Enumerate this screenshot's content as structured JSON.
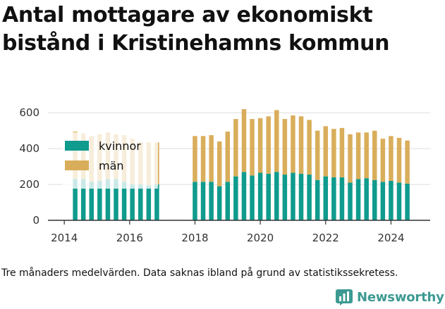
{
  "title": "Antal mottagare av ekonomiskt bistånd i Kristinehamns kommun",
  "footnote": "Tre månaders medelvärden. Data saknas ibland på grund av statistikssekretess.",
  "brand": {
    "name": "Newsworthy",
    "icon": "newsworthy-logo-icon"
  },
  "colors": {
    "kvinnor": "#0f9b8e",
    "man": "#d9ae5b",
    "axis": "#333333",
    "grid": "#dddddd"
  },
  "chart_data": {
    "type": "bar",
    "stacked": true,
    "x_ticks": [
      "2014",
      "2016",
      "2018",
      "2020",
      "2022",
      "2024"
    ],
    "y_ticks": [
      "0",
      "200",
      "400",
      "600"
    ],
    "ylim": [
      0,
      640
    ],
    "xlim": [
      2013.5,
      2025.2
    ],
    "grid": "horizontal",
    "legend_position": "top-left",
    "series": [
      {
        "name": "kvinnor",
        "color": "#0f9b8e",
        "values": [
          230,
          230,
          215,
          220,
          230,
          230,
          215,
          200,
          200,
          195,
          200,
          215,
          215,
          215,
          190,
          215,
          245,
          270,
          250,
          265,
          260,
          270,
          255,
          265,
          260,
          255,
          225,
          245,
          240,
          240,
          210,
          230,
          235,
          225,
          215,
          220,
          210,
          205
        ]
      },
      {
        "name": "män",
        "color": "#d9ae5b",
        "values": [
          265,
          255,
          255,
          260,
          260,
          250,
          260,
          255,
          235,
          240,
          235,
          255,
          255,
          260,
          250,
          280,
          320,
          350,
          315,
          305,
          320,
          345,
          310,
          320,
          320,
          305,
          275,
          280,
          270,
          275,
          270,
          260,
          255,
          275,
          240,
          250,
          250,
          240
        ]
      }
    ],
    "x": [
      "2014-05",
      "2014-08",
      "2014-11",
      "2015-02",
      "2015-05",
      "2015-08",
      "2015-11",
      "2016-02",
      "2016-05",
      "2016-08",
      "2016-11",
      "2018-01",
      "2018-04",
      "2018-07",
      "2018-10",
      "2019-01",
      "2019-04",
      "2019-07",
      "2019-10",
      "2020-01",
      "2020-04",
      "2020-07",
      "2020-10",
      "2021-01",
      "2021-04",
      "2021-07",
      "2021-10",
      "2022-01",
      "2022-04",
      "2022-07",
      "2022-10",
      "2023-01",
      "2023-04",
      "2023-07",
      "2023-10",
      "2024-01",
      "2024-04",
      "2024-07"
    ]
  }
}
